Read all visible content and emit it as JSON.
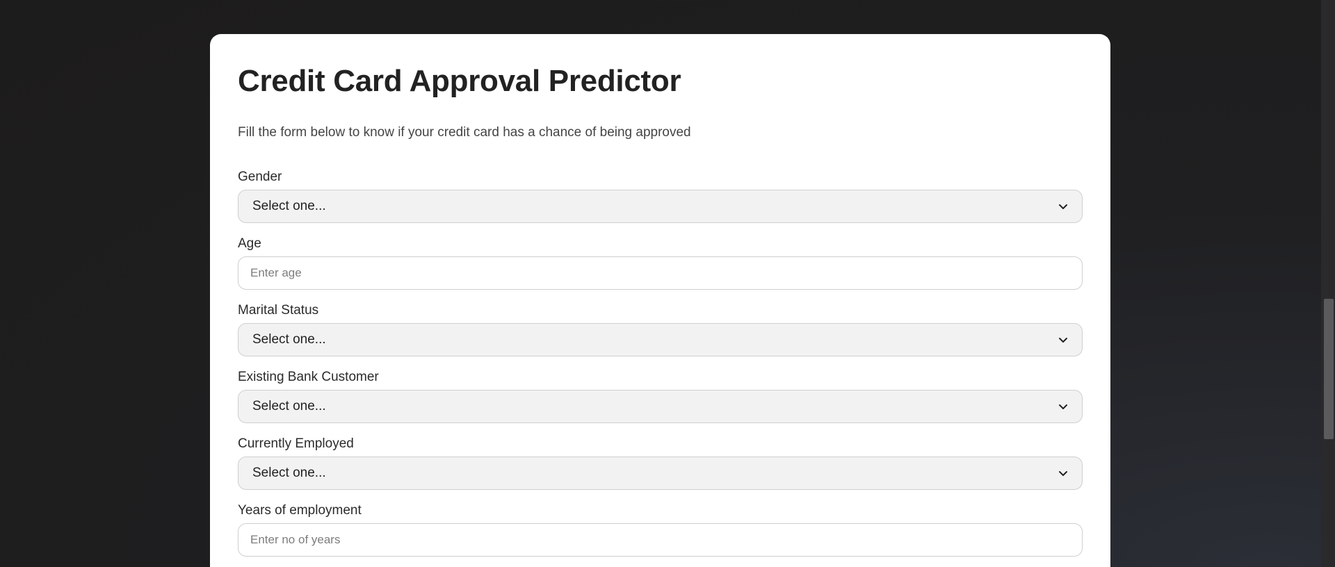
{
  "page": {
    "title": "Credit Card Approval Predictor",
    "subtitle": "Fill the form below to know if your credit card has a chance of being approved"
  },
  "form": {
    "fields": [
      {
        "label": "Gender",
        "type": "select",
        "value": "Select one..."
      },
      {
        "label": "Age",
        "type": "input",
        "placeholder": "Enter age"
      },
      {
        "label": "Marital Status",
        "type": "select",
        "value": "Select one..."
      },
      {
        "label": "Existing Bank Customer",
        "type": "select",
        "value": "Select one..."
      },
      {
        "label": "Currently Employed",
        "type": "select",
        "value": "Select one..."
      },
      {
        "label": "Years of employment",
        "type": "input",
        "placeholder": "Enter no of years"
      }
    ]
  },
  "colors": {
    "background": "#1d1c1c",
    "card": "#ffffff",
    "select_bg": "#f2f2f2",
    "border": "#cfcfcf"
  },
  "icons": {
    "select_arrow": "chevron-down-icon"
  }
}
